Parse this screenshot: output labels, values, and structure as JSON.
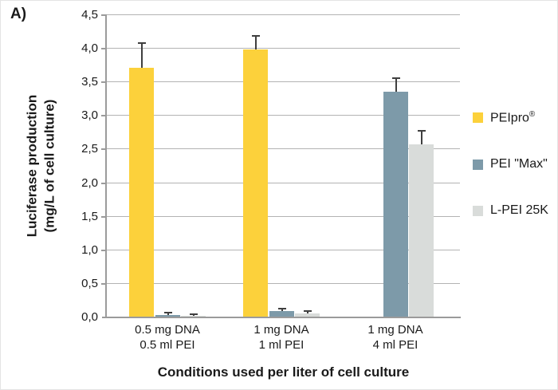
{
  "panel_label": "A)",
  "colors": {
    "peipro": "#FCD13B",
    "pei_max": "#7D9AA9",
    "lpei_25k": "#D9DCDA",
    "gridline": "#B3B3B3",
    "axis": "#9B9B9B",
    "error_bar": "#3F3F3F"
  },
  "chart_data": {
    "type": "bar",
    "title": "",
    "xlabel": "Conditions used per liter of cell culture",
    "ylabel_lines": [
      "Luciferase production",
      "(mg/L of cell culture)"
    ],
    "ylim": [
      0,
      4.5
    ],
    "ytick_step": 0.5,
    "ytick_labels": [
      "0,0",
      "0,5",
      "1,0",
      "1,5",
      "2,0",
      "2,5",
      "3,0",
      "3,5",
      "4,0",
      "4,5"
    ],
    "grid": true,
    "legend_position": "right",
    "categories": [
      [
        "0.5 mg DNA",
        "0.5 ml PEI"
      ],
      [
        "1 mg DNA",
        "1 ml PEI"
      ],
      [
        "1 mg DNA",
        "4 ml PEI"
      ]
    ],
    "series": [
      {
        "key": "peipro",
        "label": "PEIpro",
        "label_sup": "®",
        "values": [
          3.7,
          3.98,
          null
        ],
        "errors": [
          0.37,
          0.2,
          null
        ]
      },
      {
        "key": "pei_max",
        "label": "PEI \"Max\"",
        "values": [
          0.02,
          0.08,
          3.35
        ],
        "errors": [
          0.03,
          0.035,
          0.2
        ]
      },
      {
        "key": "lpei_25k",
        "label": "L-PEI 25K",
        "values": [
          0.01,
          0.045,
          2.57
        ],
        "errors": [
          0.02,
          0.035,
          0.2
        ]
      }
    ]
  }
}
